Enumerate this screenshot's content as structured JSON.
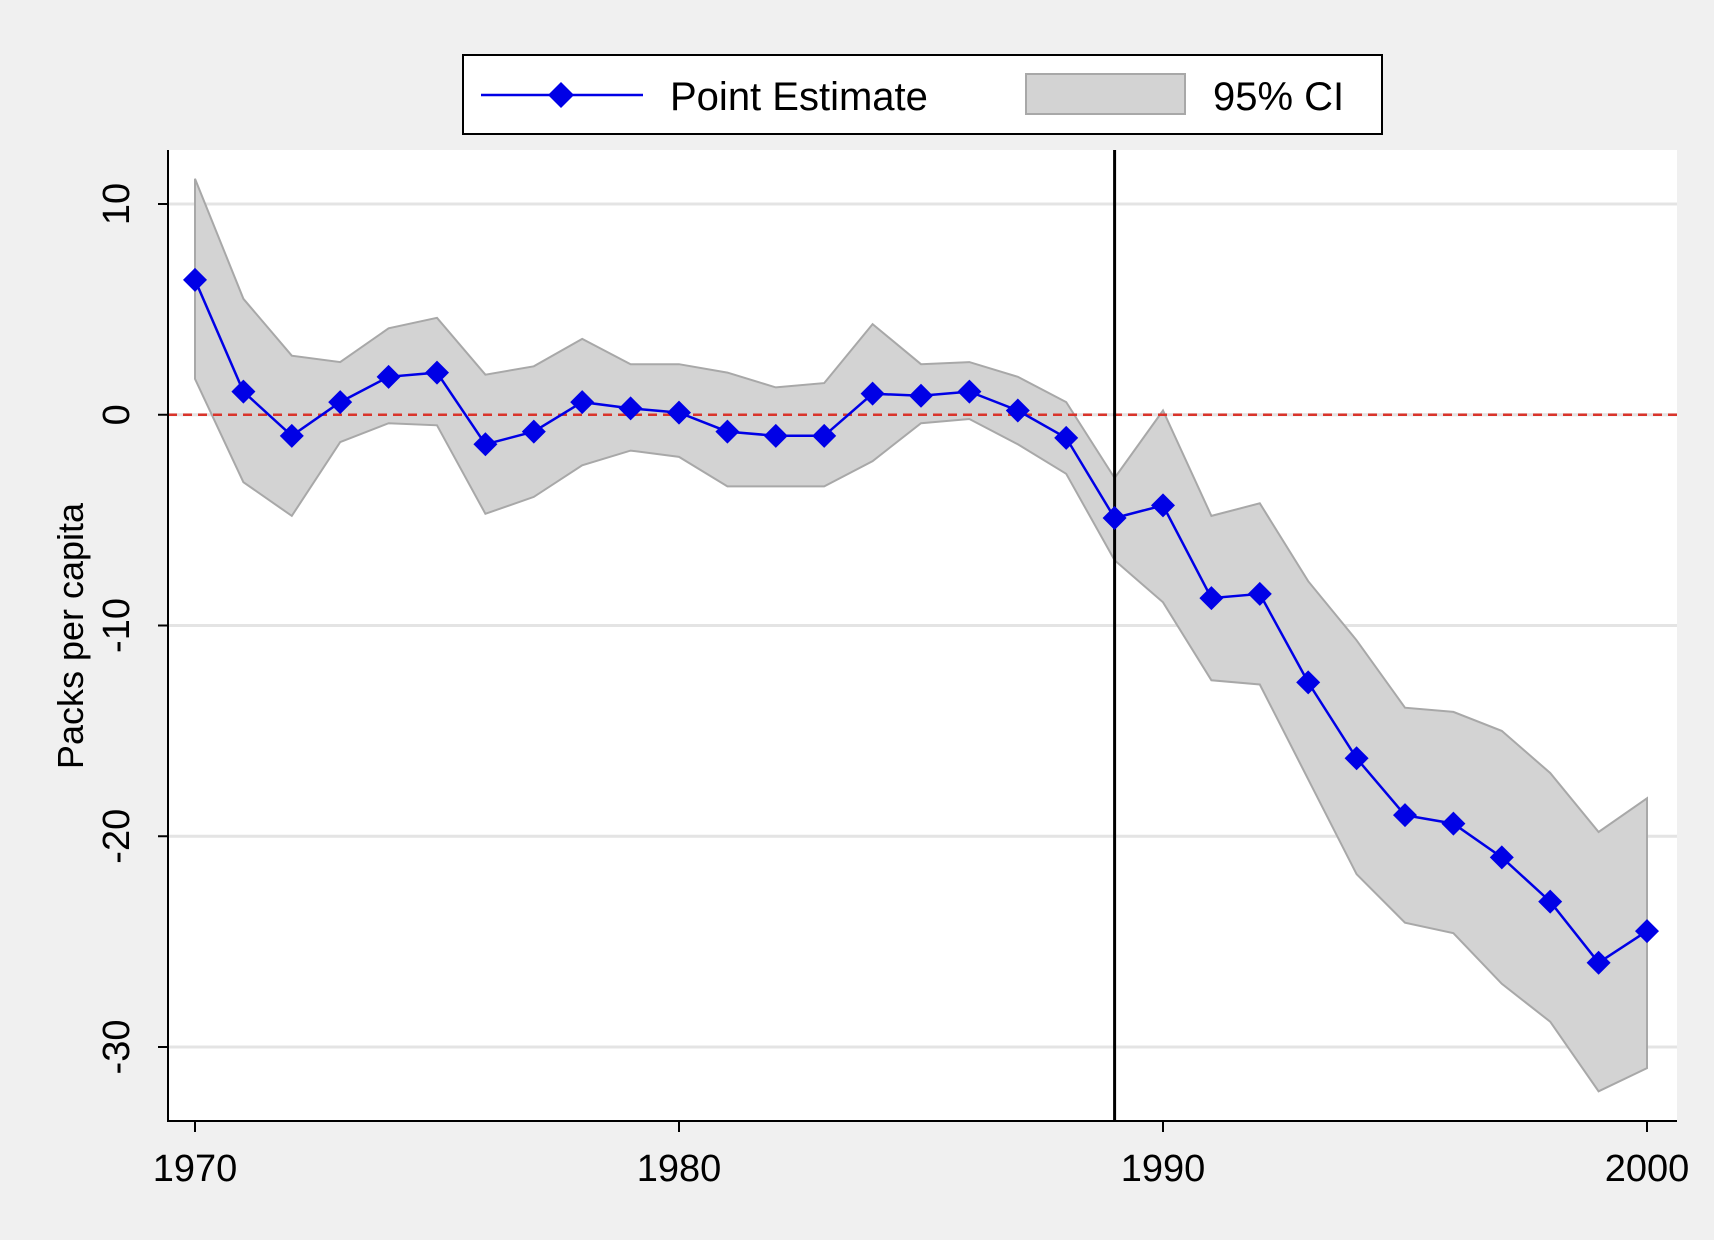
{
  "chart_data": {
    "type": "line",
    "ylabel": "Packs per capita",
    "xlim": [
      1970,
      2000
    ],
    "ylim": [
      -30,
      10
    ],
    "x_ticks": [
      1970,
      1980,
      1990,
      2000
    ],
    "y_ticks": [
      10,
      0,
      -10,
      -20,
      -30
    ],
    "grid": true,
    "legend_position": "top",
    "x": [
      1970,
      1971,
      1972,
      1973,
      1974,
      1975,
      1976,
      1977,
      1978,
      1979,
      1980,
      1981,
      1982,
      1983,
      1984,
      1985,
      1986,
      1987,
      1988,
      1989,
      1990,
      1991,
      1992,
      1993,
      1994,
      1995,
      1996,
      1997,
      1998,
      1999,
      2000
    ],
    "series": [
      {
        "name": "Point Estimate",
        "values": [
          6.4,
          1.1,
          -1.0,
          0.6,
          1.8,
          2.0,
          -1.4,
          -0.8,
          0.6,
          0.3,
          0.1,
          -0.8,
          -1.0,
          -1.0,
          1.0,
          0.9,
          1.1,
          0.2,
          -1.1,
          -4.9,
          -4.3,
          -8.7,
          -8.5,
          -12.7,
          -16.3,
          -19.0,
          -19.4,
          -21.0,
          -23.1,
          -26.0,
          -24.5
        ],
        "color": "#0000e6"
      },
      {
        "name": "95% CI",
        "lower": [
          1.7,
          -3.2,
          -4.8,
          -1.3,
          -0.4,
          -0.5,
          -4.7,
          -3.9,
          -2.4,
          -1.7,
          -2.0,
          -3.4,
          -3.4,
          -3.4,
          -2.2,
          -0.4,
          -0.2,
          -1.4,
          -2.8,
          -6.9,
          -8.9,
          -12.6,
          -12.8,
          -17.3,
          -21.8,
          -24.1,
          -24.6,
          -27.0,
          -28.8,
          -32.1,
          -31.0
        ],
        "upper": [
          11.2,
          5.5,
          2.8,
          2.5,
          4.1,
          4.6,
          1.9,
          2.3,
          3.6,
          2.4,
          2.4,
          2.0,
          1.3,
          1.5,
          4.3,
          2.4,
          2.5,
          1.8,
          0.6,
          -3.0,
          0.2,
          -4.8,
          -4.2,
          -7.9,
          -10.7,
          -13.9,
          -14.1,
          -15.0,
          -17.0,
          -19.8,
          -18.2
        ],
        "color": "#d3d3d3"
      }
    ],
    "annotations": {
      "reference_line_y": 0,
      "reference_line_color": "#d9342b",
      "vertical_line_x": 1989,
      "vertical_line_color": "#000000"
    }
  }
}
